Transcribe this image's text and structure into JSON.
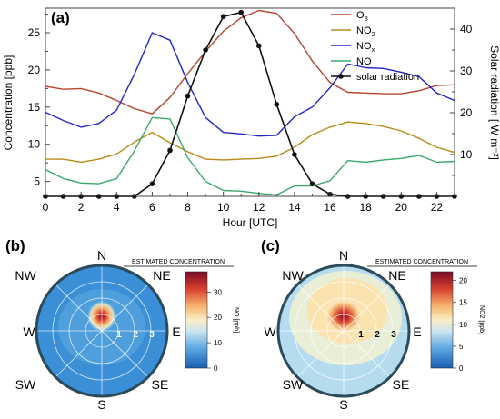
{
  "chart_data": [
    {
      "type": "line",
      "panel_label": "(a)",
      "xlabel": "Hour [UTC]",
      "ylabel": "Concentration [ppb]",
      "y2label": "Solar radiation [ W m⁻²]",
      "xlim": [
        0,
        23
      ],
      "ylim": [
        3,
        28.3
      ],
      "y2lim": [
        0,
        45
      ],
      "xticks": [
        "0",
        "2",
        "4",
        "6",
        "8",
        "10",
        "12",
        "14",
        "16",
        "18",
        "20",
        "22"
      ],
      "yticks": [
        "5",
        "10",
        "15",
        "20",
        "25"
      ],
      "y2ticks": [
        "10",
        "20",
        "30",
        "40"
      ],
      "x": [
        0,
        1,
        2,
        3,
        4,
        5,
        6,
        7,
        8,
        9,
        10,
        11,
        12,
        13,
        14,
        15,
        16,
        17,
        18,
        19,
        20,
        21,
        22,
        23
      ],
      "legend_position": "top-right",
      "series": [
        {
          "name": "O3",
          "color": "#b3452c",
          "axis": "left",
          "values": [
            17.8,
            17.4,
            17.5,
            16.9,
            15.9,
            14.8,
            14.1,
            16.3,
            19.5,
            22.5,
            25.2,
            27.0,
            28.0,
            27.6,
            24.9,
            21.2,
            18.3,
            17.0,
            16.9,
            16.8,
            16.8,
            17.2,
            17.9,
            18.0
          ]
        },
        {
          "name": "NO2",
          "color": "#b88a16",
          "axis": "left",
          "values": [
            8.0,
            8.0,
            7.6,
            8.0,
            8.7,
            10.3,
            11.6,
            10.2,
            9.0,
            8.0,
            7.9,
            8.0,
            8.1,
            8.4,
            9.6,
            11.3,
            12.3,
            13.0,
            12.8,
            12.4,
            11.8,
            10.8,
            9.6,
            8.9
          ]
        },
        {
          "name": "NOx",
          "color": "#2326c4",
          "axis": "left",
          "values": [
            14.3,
            13.2,
            12.3,
            12.8,
            14.6,
            19.4,
            25.0,
            24.0,
            18.3,
            13.6,
            11.6,
            11.4,
            11.1,
            11.2,
            13.7,
            15.0,
            17.6,
            20.8,
            20.3,
            20.2,
            19.7,
            19.1,
            16.9,
            15.9
          ]
        },
        {
          "name": "NO",
          "color": "#3aa86c",
          "axis": "left",
          "values": [
            6.6,
            5.4,
            4.8,
            4.7,
            5.4,
            9.1,
            13.6,
            13.4,
            8.2,
            5.0,
            3.8,
            3.7,
            3.4,
            3.2,
            4.4,
            4.4,
            5.1,
            7.8,
            7.6,
            7.9,
            8.1,
            8.5,
            7.6,
            7.7
          ]
        },
        {
          "name": "solar radiation",
          "color": "#111111",
          "axis": "right",
          "marker": "circle",
          "values": [
            0,
            0,
            0,
            0,
            0,
            0,
            3,
            11,
            24,
            35,
            43,
            44,
            36,
            22,
            10,
            3,
            0.5,
            0,
            0,
            0,
            0,
            0,
            0,
            0
          ]
        }
      ]
    },
    {
      "type": "heatmap",
      "panel_label": "(b)",
      "subtype": "polar",
      "directions": [
        "N",
        "NE",
        "E",
        "SE",
        "S",
        "SW",
        "W",
        "NW"
      ],
      "radial_ticks": [
        "1",
        "2",
        "3"
      ],
      "colorbar_title": "ESTIMATED CONCENTRATION",
      "colorbar_label": "NO [ppb]",
      "colorbar_range": [
        0,
        38
      ],
      "colorbar_ticks": [
        "0",
        "10",
        "20",
        "30"
      ],
      "hotspot": {
        "direction": "N",
        "distance": 0.6,
        "peak": 38,
        "background": 8
      }
    },
    {
      "type": "heatmap",
      "panel_label": "(c)",
      "subtype": "polar",
      "directions": [
        "N",
        "NE",
        "E",
        "SE",
        "S",
        "SW",
        "W",
        "NW"
      ],
      "radial_ticks": [
        "1",
        "2",
        "3"
      ],
      "colorbar_title": "ESTIMATED CONCENTRATION",
      "colorbar_label": "NO2 [ppb]",
      "colorbar_range": [
        0,
        22
      ],
      "colorbar_ticks": [
        "0",
        "5",
        "10",
        "15",
        "20"
      ],
      "hotspot": {
        "direction": "NNE",
        "distance": 0.6,
        "peak": 22,
        "background": 8
      }
    }
  ]
}
